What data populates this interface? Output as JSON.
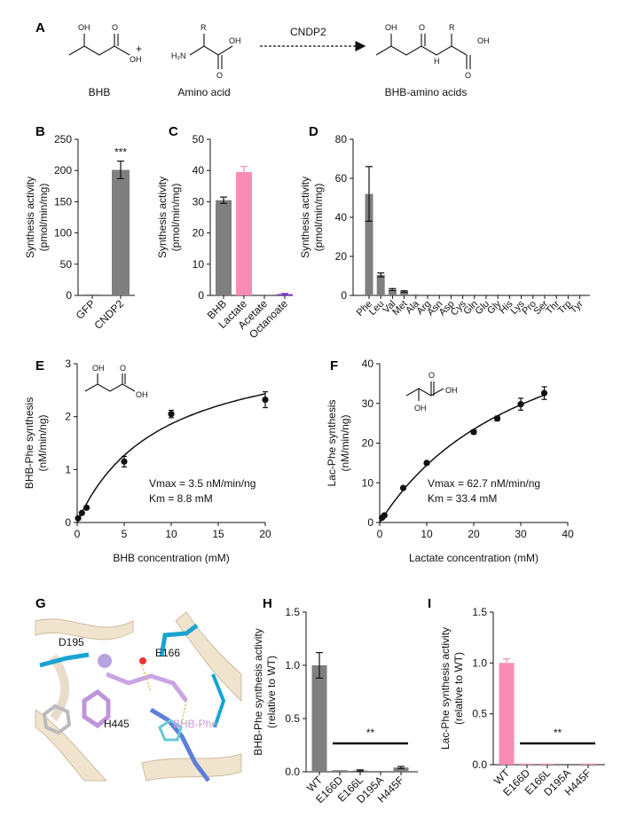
{
  "colors": {
    "gray": "#7f7f7f",
    "pink": "#f88cb4",
    "purple": "#7a2fd6",
    "black": "#111111"
  },
  "panel_labels": [
    "A",
    "B",
    "C",
    "D",
    "E",
    "F",
    "G",
    "H",
    "I"
  ],
  "scheme": {
    "reaction_label": "CNDP2",
    "reactant1": "BHB",
    "plus": "+",
    "reactant2": "Amino acid",
    "product": "BHB-amino acids",
    "atoms": {
      "oh": "OH",
      "r": "R",
      "nh2": "H₂N",
      "o": "O",
      "nh": "H"
    }
  },
  "structure_panel": {
    "labels": [
      "D195",
      "E166",
      "H445",
      "BHB-Phe"
    ]
  },
  "significance": {
    "B": "***",
    "H": "**",
    "I": "**"
  },
  "fit_text": {
    "E": [
      "Vmax = 3.5 nM/min/ng",
      "Km = 8.8 mM"
    ],
    "F": [
      "Vmax = 62.7 nM/min/ng",
      "Km = 33.4 mM"
    ]
  },
  "chart_data": [
    {
      "panel": "B",
      "type": "bar",
      "categories": [
        "GFP",
        "CNDP2"
      ],
      "values": [
        1,
        201
      ],
      "errors": [
        0,
        14
      ],
      "colors": [
        "#7f7f7f",
        "#7f7f7f"
      ],
      "ylabel": [
        "Synthesis activity",
        "(pmol/min/mg)"
      ],
      "ylim": [
        0,
        250
      ],
      "yticks": [
        0,
        50,
        100,
        150,
        200,
        250
      ],
      "annotation": "***"
    },
    {
      "panel": "C",
      "type": "bar",
      "categories": [
        "BHB",
        "Lactate",
        "Acetate",
        "Octanoate"
      ],
      "values": [
        30.5,
        39.5,
        0,
        0.4
      ],
      "errors": [
        1,
        1.8,
        0,
        0.2
      ],
      "colors": [
        "#7f7f7f",
        "#f88cb4",
        "#7f7f7f",
        "#7a2fd6"
      ],
      "ylabel": [
        "Synthesis activity",
        "(pmol/min/mg)"
      ],
      "ylim": [
        0,
        50
      ],
      "yticks": [
        0,
        10,
        20,
        30,
        40,
        50
      ]
    },
    {
      "panel": "D",
      "type": "bar",
      "categories": [
        "Phe",
        "Leu",
        "Val",
        "Met",
        "Ala",
        "Arg",
        "Asn",
        "Asp",
        "Cys",
        "Gln",
        "Glu",
        "Gly",
        "His",
        "Lys",
        "Pro",
        "Ser",
        "Thr",
        "Trp",
        "Tyr"
      ],
      "values": [
        52,
        10.5,
        3,
        2,
        0.4,
        0,
        0,
        0,
        0,
        0,
        0,
        0,
        0,
        0,
        0,
        0,
        0,
        0,
        0
      ],
      "errors": [
        14,
        1,
        0.5,
        0.4,
        0,
        0,
        0,
        0,
        0,
        0,
        0,
        0,
        0,
        0,
        0,
        0,
        0,
        0,
        0
      ],
      "ylabel": [
        "Synthesis activity",
        "(pmol/min/mg)"
      ],
      "ylim": [
        0,
        80
      ],
      "yticks": [
        0,
        20,
        40,
        60,
        80
      ]
    },
    {
      "panel": "E",
      "type": "scatter",
      "x": [
        0.1,
        0.5,
        1,
        5,
        10,
        20
      ],
      "y": [
        0.08,
        0.18,
        0.28,
        1.15,
        2.05,
        2.32
      ],
      "errors": [
        0,
        0,
        0,
        0.1,
        0.07,
        0.15
      ],
      "fit": {
        "vmax": 3.5,
        "km": 8.8
      },
      "xlabel": "BHB concentration (mM)",
      "ylabel": [
        "BHB-Phe synthesis",
        "(nM/min/ng)"
      ],
      "xlim": [
        0,
        20
      ],
      "ylim": [
        0,
        3
      ],
      "xticks": [
        0,
        5,
        10,
        15,
        20
      ],
      "yticks": [
        0,
        1,
        2,
        3
      ]
    },
    {
      "panel": "F",
      "type": "scatter",
      "x": [
        0.5,
        1,
        5,
        10,
        20,
        25,
        30,
        35
      ],
      "y": [
        1.2,
        1.8,
        8.7,
        15,
        22.8,
        26.2,
        29.8,
        32.6
      ],
      "errors": [
        0,
        0,
        0,
        0.4,
        0.5,
        0.6,
        1.5,
        1.6
      ],
      "fit": {
        "vmax": 62.7,
        "km": 33.4
      },
      "xlabel": "Lactate concentration (mM)",
      "ylabel": [
        "Lac-Phe synthesis",
        "(nM/min/ng)"
      ],
      "xlim": [
        0,
        40
      ],
      "ylim": [
        0,
        40
      ],
      "xticks": [
        0,
        10,
        20,
        30,
        40
      ],
      "yticks": [
        0,
        10,
        20,
        30,
        40
      ]
    },
    {
      "panel": "H",
      "type": "bar",
      "categories": [
        "WT",
        "E166D",
        "E166L",
        "D195A",
        "H445F"
      ],
      "values": [
        1.0,
        0.015,
        0.012,
        0.0,
        0.04
      ],
      "errors": [
        0.12,
        0,
        0.006,
        0,
        0.01
      ],
      "color": "#7f7f7f",
      "ylabel": [
        "BHB-Phe synthesis activity",
        "(relative to WT)"
      ],
      "ylim": [
        0,
        1.5
      ],
      "yticks": [
        0.0,
        0.5,
        1.0,
        1.5
      ],
      "annotation": "**"
    },
    {
      "panel": "I",
      "type": "bar",
      "categories": [
        "WT",
        "E166D",
        "E166L",
        "D195A",
        "H445F"
      ],
      "values": [
        1.0,
        0.01,
        0.01,
        0.0,
        0.01
      ],
      "errors": [
        0.04,
        0,
        0,
        0,
        0
      ],
      "color": "#f88cb4",
      "ylabel": [
        "Lac-Phe synthesis activity",
        "(relative to WT)"
      ],
      "ylim": [
        0,
        1.5
      ],
      "yticks": [
        0.0,
        0.5,
        1.0,
        1.5
      ],
      "annotation": "**"
    }
  ]
}
